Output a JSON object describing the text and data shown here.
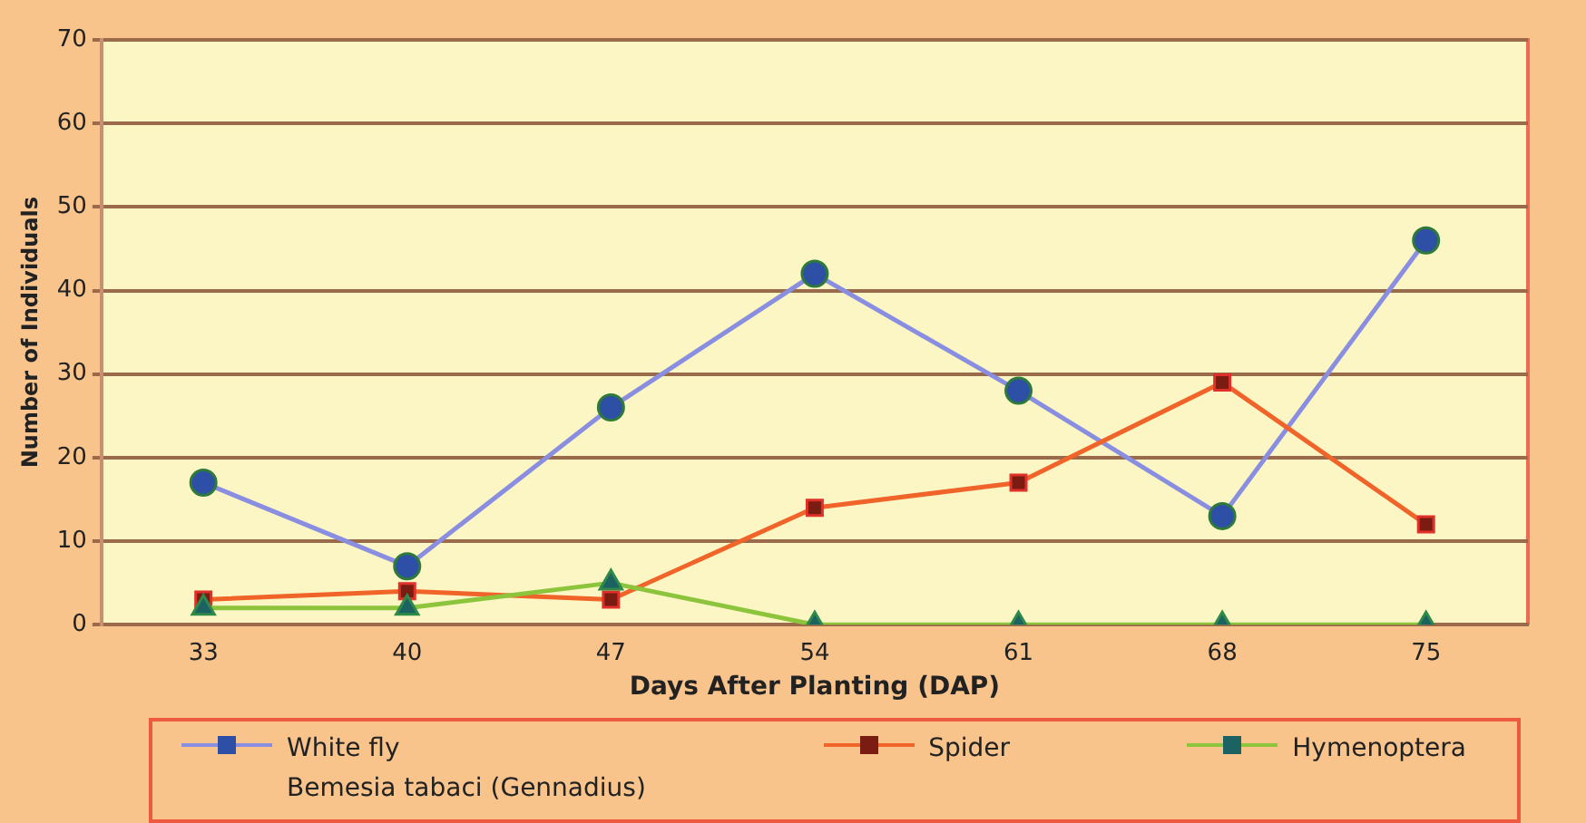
{
  "chart_data": {
    "type": "line",
    "xlabel": "Days After Planting (DAP)",
    "ylabel": "Number of Individuals",
    "categories": [
      "33",
      "40",
      "47",
      "54",
      "61",
      "68",
      "75"
    ],
    "series": [
      {
        "name": "White fly\nBemesia tabaci (Gennadius)",
        "color": "#8a8ee0",
        "marker": "circle",
        "values": [
          17,
          7,
          26,
          42,
          28,
          13,
          46
        ]
      },
      {
        "name": "Spider",
        "color": "#f0642a",
        "marker": "square",
        "values": [
          3,
          4,
          3,
          14,
          17,
          29,
          12
        ]
      },
      {
        "name": "Hymenoptera",
        "color": "#8cc43c",
        "marker": "triangle",
        "values": [
          2,
          2,
          5,
          0,
          0,
          0,
          0
        ]
      }
    ],
    "ylim": [
      0,
      70
    ],
    "yticks": [
      0,
      10,
      20,
      30,
      40,
      50,
      60,
      70
    ],
    "grid": "y",
    "legend": "bottom"
  }
}
